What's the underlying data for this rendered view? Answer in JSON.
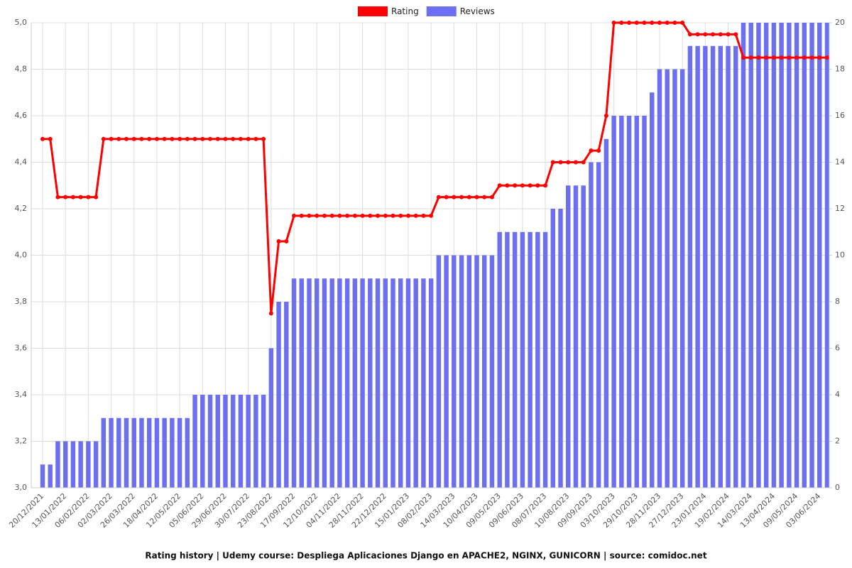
{
  "chart_data": {
    "type": "combo",
    "title": "Rating history | Udemy course: Despliega Aplicaciones Django en APACHE2, NGINX, GUNICORN | source: comidoc.net",
    "categories": [
      "20/12/2021",
      null,
      null,
      "13/01/2022",
      null,
      null,
      "06/02/2022",
      null,
      null,
      "02/03/2022",
      null,
      null,
      "26/03/2022",
      null,
      null,
      "18/04/2022",
      null,
      null,
      "12/05/2022",
      null,
      null,
      "05/06/2022",
      null,
      null,
      "29/06/2022",
      null,
      null,
      "30/07/2022",
      null,
      null,
      "23/08/2022",
      null,
      null,
      "17/09/2022",
      null,
      null,
      "12/10/2022",
      null,
      null,
      "04/11/2022",
      null,
      null,
      "28/11/2022",
      null,
      null,
      "22/12/2022",
      null,
      null,
      "15/01/2023",
      null,
      null,
      "08/02/2023",
      null,
      null,
      "14/03/2023",
      null,
      null,
      "10/04/2023",
      null,
      null,
      "09/05/2023",
      null,
      null,
      "09/06/2023",
      null,
      null,
      "08/07/2023",
      null,
      null,
      "10/08/2023",
      null,
      null,
      "09/09/2023",
      null,
      null,
      "03/10/2023",
      null,
      null,
      "29/10/2023",
      null,
      null,
      "28/11/2023",
      null,
      null,
      "27/12/2023",
      null,
      null,
      "23/01/2024",
      null,
      null,
      "19/02/2024",
      null,
      null,
      "14/03/2024",
      null,
      null,
      "13/04/2024",
      null,
      null,
      "09/05/2024",
      null,
      null,
      "03/06/2024",
      null
    ],
    "series": [
      {
        "name": "Rating",
        "type": "line",
        "color": "#ff0000",
        "axis": "y",
        "values": [
          4.5,
          4.5,
          4.25,
          4.25,
          4.25,
          4.25,
          4.25,
          4.25,
          4.5,
          4.5,
          4.5,
          4.5,
          4.5,
          4.5,
          4.5,
          4.5,
          4.5,
          4.5,
          4.5,
          4.5,
          4.5,
          4.5,
          4.5,
          4.5,
          4.5,
          4.5,
          4.5,
          4.5,
          4.5,
          4.5,
          3.75,
          4.06,
          4.06,
          4.17,
          4.17,
          4.17,
          4.17,
          4.17,
          4.17,
          4.17,
          4.17,
          4.17,
          4.17,
          4.17,
          4.17,
          4.17,
          4.17,
          4.17,
          4.17,
          4.17,
          4.17,
          4.17,
          4.25,
          4.25,
          4.25,
          4.25,
          4.25,
          4.25,
          4.25,
          4.25,
          4.3,
          4.3,
          4.3,
          4.3,
          4.3,
          4.3,
          4.3,
          4.4,
          4.4,
          4.4,
          4.4,
          4.4,
          4.45,
          4.45,
          4.6,
          5,
          5,
          5,
          5,
          5,
          5,
          5,
          5,
          5,
          5,
          4.95,
          4.95,
          4.95,
          4.95,
          4.95,
          4.95,
          4.95,
          4.85,
          4.85,
          4.85,
          4.85,
          4.85,
          4.85,
          4.85,
          4.85,
          4.85,
          4.85,
          4.85,
          4.85
        ]
      },
      {
        "name": "Reviews",
        "type": "bar",
        "color": "#6b6ff0",
        "axis": "y2",
        "values": [
          1,
          1,
          2,
          2,
          2,
          2,
          2,
          2,
          3,
          3,
          3,
          3,
          3,
          3,
          3,
          3,
          3,
          3,
          3,
          3,
          4,
          4,
          4,
          4,
          4,
          4,
          4,
          4,
          4,
          4,
          6,
          8,
          8,
          9,
          9,
          9,
          9,
          9,
          9,
          9,
          9,
          9,
          9,
          9,
          9,
          9,
          9,
          9,
          9,
          9,
          9,
          9,
          10,
          10,
          10,
          10,
          10,
          10,
          10,
          10,
          11,
          11,
          11,
          11,
          11,
          11,
          11,
          12,
          12,
          13,
          13,
          13,
          14,
          14,
          15,
          16,
          16,
          16,
          16,
          16,
          17,
          18,
          18,
          18,
          18,
          19,
          19,
          19,
          19,
          19,
          19,
          19,
          20,
          20,
          20,
          20,
          20,
          20,
          20,
          20,
          20,
          20,
          20,
          20
        ]
      }
    ],
    "ylim": [
      3,
      5
    ],
    "yticks": [
      {
        "value": 3,
        "label": "3,0"
      },
      {
        "value": 3.2,
        "label": "3,2"
      },
      {
        "value": 3.4,
        "label": "3,4"
      },
      {
        "value": 3.6,
        "label": "3,6"
      },
      {
        "value": 3.8,
        "label": "3,8"
      },
      {
        "value": 4,
        "label": "4,0"
      },
      {
        "value": 4.2,
        "label": "4,2"
      },
      {
        "value": 4.4,
        "label": "4,4"
      },
      {
        "value": 4.6,
        "label": "4,6"
      },
      {
        "value": 4.8,
        "label": "4,8"
      },
      {
        "value": 5,
        "label": "5,0"
      }
    ],
    "y2lim": [
      0,
      20
    ],
    "y2ticks": [
      0,
      2,
      4,
      6,
      8,
      10,
      12,
      14,
      16,
      18,
      20
    ],
    "grid": true,
    "legend": "top"
  }
}
